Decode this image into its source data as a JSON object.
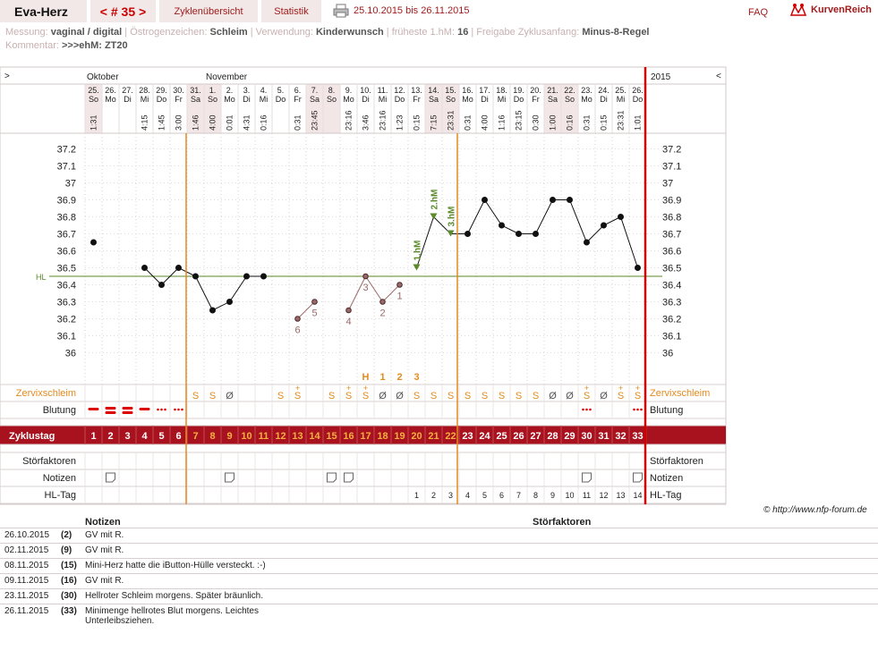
{
  "header": {
    "name": "Eva-Herz",
    "cycle": "< # 35 >",
    "tab_overview": "Zyklenübersicht",
    "tab_stats": "Statistik",
    "date_range": "25.10.2015 bis 26.11.2015",
    "faq": "FAQ",
    "logo_text": "KurvenReich"
  },
  "meta": {
    "row1": [
      {
        "key": "Messung:",
        "value": "vaginal / digital"
      },
      {
        "key": "Östrogenzeichen:",
        "value": "Schleim"
      },
      {
        "key": "Verwendung:",
        "value": "Kinderwunsch"
      },
      {
        "key": "früheste 1.hM:",
        "value": "16"
      },
      {
        "key": "Freigabe Zyklusanfang:",
        "value": "Minus-8-Regel"
      }
    ],
    "row2": [
      {
        "key": "Kommentar:",
        "value": ">>>ehM: ZT20"
      }
    ]
  },
  "chart_data": {
    "type": "line",
    "months": [
      {
        "label": "Oktober",
        "start_index": 0
      },
      {
        "label": "November",
        "start_index": 7
      }
    ],
    "year": "2015",
    "nav_left": ">",
    "nav_right": "<",
    "days": [
      "25.",
      "26.",
      "27.",
      "28.",
      "29.",
      "30.",
      "31.",
      "1.",
      "2.",
      "3.",
      "4.",
      "5.",
      "6.",
      "7.",
      "8.",
      "9.",
      "10.",
      "11.",
      "12.",
      "13.",
      "14.",
      "15.",
      "16.",
      "17.",
      "18.",
      "19.",
      "20.",
      "21.",
      "22.",
      "23.",
      "24.",
      "25.",
      "26."
    ],
    "weekdays": [
      "So",
      "Mo",
      "Di",
      "Mi",
      "Do",
      "Fr",
      "Sa",
      "So",
      "Mo",
      "Di",
      "Mi",
      "Do",
      "Fr",
      "Sa",
      "So",
      "Mo",
      "Di",
      "Mi",
      "Do",
      "Fr",
      "Sa",
      "So",
      "Mo",
      "Di",
      "Mi",
      "Do",
      "Fr",
      "Sa",
      "So",
      "Mo",
      "Di",
      "Mi",
      "Do"
    ],
    "times": [
      "1:31",
      "",
      "",
      "4:15",
      "1:45",
      "3:00",
      "1:46",
      "4:00",
      "0:01",
      "4:31",
      "0:16",
      "",
      "0:31",
      "23:45",
      "",
      "23:16",
      "3:46",
      "23:16",
      "1:23",
      "0:15",
      "7:15",
      "23:31",
      "0:31",
      "4:00",
      "1:16",
      "23:15",
      "0:30",
      "1:00",
      "0:16",
      "0:31",
      "0:15",
      "23:31",
      "1:01"
    ],
    "weekend_indices": [
      0,
      6,
      7,
      13,
      14,
      20,
      21,
      27,
      28
    ],
    "temps": [
      36.65,
      null,
      null,
      36.5,
      36.4,
      36.5,
      36.45,
      36.25,
      36.3,
      36.45,
      36.45,
      null,
      36.2,
      36.3,
      null,
      36.25,
      36.45,
      36.3,
      36.4,
      36.5,
      36.8,
      36.7,
      36.7,
      36.9,
      36.75,
      36.7,
      36.7,
      36.9,
      36.9,
      36.65,
      36.75,
      36.8,
      36.5
    ],
    "excluded_indices": [
      12,
      13,
      15,
      16,
      17,
      18
    ],
    "excluded_labels": [
      {
        "index": 12,
        "label": "6"
      },
      {
        "index": 13,
        "label": "5"
      },
      {
        "index": 15,
        "label": "4"
      },
      {
        "index": 16,
        "label": "3"
      },
      {
        "index": 17,
        "label": "2"
      },
      {
        "index": 18,
        "label": "1"
      }
    ],
    "hm_markers": [
      {
        "index": 19,
        "label": "1.hM"
      },
      {
        "index": 20,
        "label": "2.hM"
      },
      {
        "index": 21,
        "label": "3.hM"
      }
    ],
    "peak_labels": [
      {
        "index": 16,
        "label": "H"
      },
      {
        "index": 17,
        "label": "1"
      },
      {
        "index": 18,
        "label": "2"
      },
      {
        "index": 19,
        "label": "3"
      }
    ],
    "hl": {
      "value": 36.45,
      "label": "HL"
    },
    "ylim": [
      35.95,
      37.25
    ],
    "yticks": [
      "37.2",
      "37.1",
      "37",
      "36.9",
      "36.8",
      "36.7",
      "36.6",
      "36.5",
      "36.4",
      "36.3",
      "36.2",
      "36.1",
      "36"
    ],
    "orange_lines": [
      6,
      22
    ],
    "mucus": [
      "",
      "",
      "",
      "",
      "",
      "",
      "S",
      "S",
      "Ø",
      "",
      "",
      "S",
      "S+",
      "",
      "S",
      "S+",
      "S+",
      "Ø",
      "Ø",
      "S",
      "S",
      "S",
      "S",
      "S",
      "S",
      "S",
      "S",
      "Ø",
      "Ø",
      "S+",
      "Ø",
      "S+",
      "S+"
    ],
    "bleeding": [
      "heavy1",
      "heavy2",
      "heavy2",
      "heavy1",
      "dots",
      "dots",
      "",
      "",
      "",
      "",
      "",
      "",
      "",
      "",
      "",
      "",
      "",
      "",
      "",
      "",
      "",
      "",
      "",
      "",
      "",
      "",
      "",
      "",
      "",
      "dots",
      "",
      "",
      "dots"
    ],
    "cycle_days": [
      "1",
      "2",
      "3",
      "4",
      "5",
      "6",
      "7",
      "8",
      "9",
      "10",
      "11",
      "12",
      "13",
      "14",
      "15",
      "16",
      "17",
      "18",
      "19",
      "20",
      "21",
      "22",
      "23",
      "24",
      "25",
      "26",
      "27",
      "28",
      "29",
      "30",
      "31",
      "32",
      "33"
    ],
    "notes_days": [
      1,
      8,
      14,
      15,
      29,
      32
    ],
    "hl_days": [
      "",
      "",
      "",
      "",
      "",
      "",
      "",
      "",
      "",
      "",
      "",
      "",
      "",
      "",
      "",
      "",
      "",
      "",
      "",
      "1",
      "2",
      "3",
      "4",
      "5",
      "6",
      "7",
      "8",
      "9",
      "10",
      "11",
      "12",
      "13",
      "14"
    ],
    "row_labels": {
      "mucus": "Zervixschleim",
      "bleeding": "Blutung",
      "cycle": "Zyklustag",
      "stoer": "Störfaktoren",
      "notes": "Notizen",
      "hltag": "HL-Tag"
    }
  },
  "notes": {
    "col_notes": "Notizen",
    "col_stoer": "Störfaktoren",
    "rows": [
      {
        "date": "26.10.2015",
        "day": "(2)",
        "text": "GV mit R."
      },
      {
        "date": "02.11.2015",
        "day": "(9)",
        "text": "GV mit R."
      },
      {
        "date": "08.11.2015",
        "day": "(15)",
        "text": "Mini-Herz hatte die iButton-Hülle versteckt. :-)"
      },
      {
        "date": "09.11.2015",
        "day": "(16)",
        "text": "GV mit R."
      },
      {
        "date": "23.11.2015",
        "day": "(30)",
        "text": "Hellroter Schleim morgens. Später bräunlich."
      },
      {
        "date": "26.11.2015",
        "day": "(33)",
        "text": "Minimenge hellrotes Blut morgens. Leichtes Unterleibsziehen."
      }
    ]
  },
  "copyright": "© http://www.nfp-forum.de",
  "colors": {
    "accent": "#a01c1c",
    "cycle_bar": "#a8121e",
    "orange": "#e58a1e",
    "hl": "#5a8a2a",
    "excluded": "#9a6868",
    "grid": "#d8d0d0"
  }
}
